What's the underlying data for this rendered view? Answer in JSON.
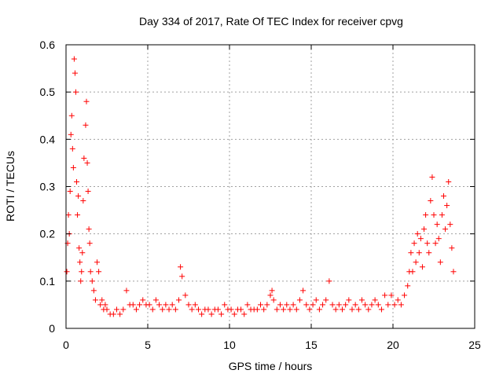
{
  "chart_data": {
    "type": "scatter",
    "title": "Day 334 of 2017, Rate Of TEC Index for receiver cpvg",
    "xlabel": "GPS time / hours",
    "ylabel": "ROTI / TECUs",
    "xlim": [
      0,
      25
    ],
    "ylim": [
      0,
      0.6
    ],
    "xticks": [
      "0",
      "5",
      "10",
      "15",
      "20",
      "25"
    ],
    "yticks": [
      "0",
      "0.1",
      "0.2",
      "0.3",
      "0.4",
      "0.5",
      "0.6"
    ],
    "grid": true,
    "marker": "+",
    "color": "#ff0000",
    "series": [
      {
        "x": [
          0.05,
          0.1,
          0.15,
          0.2,
          0.25,
          0.3,
          0.35,
          0.4,
          0.45,
          0.5,
          0.55,
          0.6,
          0.65,
          0.7,
          0.75,
          0.8,
          0.85,
          0.9,
          0.95,
          1.0,
          1.05,
          1.1,
          1.2,
          1.25,
          1.3,
          1.35,
          1.4,
          1.45,
          1.5,
          1.6,
          1.7,
          1.8,
          1.9,
          2.0,
          2.1,
          2.2,
          2.3,
          2.4,
          2.5,
          2.7,
          2.9,
          3.1,
          3.3,
          3.5,
          3.7,
          3.9,
          4.1,
          4.3,
          4.5,
          4.7,
          4.9,
          5.1,
          5.3,
          5.5,
          5.7,
          5.9,
          6.1,
          6.3,
          6.5,
          6.7,
          6.9,
          7.0,
          7.1,
          7.3,
          7.5,
          7.7,
          7.9,
          8.1,
          8.3,
          8.5,
          8.7,
          8.9,
          9.1,
          9.3,
          9.5,
          9.7,
          9.9,
          10.1,
          10.3,
          10.5,
          10.7,
          10.9,
          11.1,
          11.3,
          11.5,
          11.7,
          11.9,
          12.1,
          12.3,
          12.5,
          12.6,
          12.7,
          12.9,
          13.1,
          13.3,
          13.5,
          13.7,
          13.9,
          14.1,
          14.3,
          14.5,
          14.7,
          14.9,
          15.1,
          15.3,
          15.5,
          15.7,
          15.9,
          16.1,
          16.3,
          16.5,
          16.7,
          16.9,
          17.1,
          17.3,
          17.5,
          17.7,
          17.9,
          18.1,
          18.3,
          18.5,
          18.7,
          18.9,
          19.1,
          19.3,
          19.5,
          19.7,
          19.9,
          20.1,
          20.3,
          20.5,
          20.7,
          20.9,
          21.0,
          21.1,
          21.2,
          21.3,
          21.4,
          21.5,
          21.6,
          21.7,
          21.8,
          21.9,
          22.0,
          22.1,
          22.2,
          22.3,
          22.4,
          22.5,
          22.6,
          22.7,
          22.8,
          22.9,
          23.0,
          23.1,
          23.2,
          23.3,
          23.4,
          23.5,
          23.6,
          23.7
        ],
        "y": [
          0.12,
          0.18,
          0.24,
          0.2,
          0.29,
          0.41,
          0.45,
          0.38,
          0.34,
          0.57,
          0.54,
          0.5,
          0.31,
          0.24,
          0.28,
          0.17,
          0.14,
          0.1,
          0.12,
          0.16,
          0.27,
          0.36,
          0.43,
          0.48,
          0.35,
          0.29,
          0.21,
          0.18,
          0.12,
          0.1,
          0.08,
          0.06,
          0.14,
          0.12,
          0.05,
          0.06,
          0.04,
          0.05,
          0.04,
          0.03,
          0.03,
          0.04,
          0.03,
          0.04,
          0.08,
          0.05,
          0.05,
          0.04,
          0.05,
          0.06,
          0.05,
          0.05,
          0.04,
          0.06,
          0.05,
          0.04,
          0.05,
          0.04,
          0.05,
          0.04,
          0.06,
          0.13,
          0.11,
          0.07,
          0.05,
          0.04,
          0.05,
          0.04,
          0.03,
          0.04,
          0.04,
          0.03,
          0.04,
          0.04,
          0.03,
          0.05,
          0.04,
          0.04,
          0.03,
          0.04,
          0.04,
          0.03,
          0.05,
          0.04,
          0.04,
          0.04,
          0.05,
          0.04,
          0.05,
          0.07,
          0.08,
          0.06,
          0.04,
          0.05,
          0.04,
          0.05,
          0.04,
          0.05,
          0.04,
          0.06,
          0.08,
          0.05,
          0.04,
          0.05,
          0.06,
          0.04,
          0.05,
          0.06,
          0.1,
          0.05,
          0.04,
          0.05,
          0.04,
          0.05,
          0.06,
          0.04,
          0.05,
          0.04,
          0.06,
          0.05,
          0.04,
          0.05,
          0.06,
          0.05,
          0.04,
          0.07,
          0.05,
          0.07,
          0.05,
          0.06,
          0.05,
          0.07,
          0.09,
          0.12,
          0.16,
          0.12,
          0.18,
          0.14,
          0.2,
          0.16,
          0.19,
          0.13,
          0.21,
          0.24,
          0.18,
          0.16,
          0.27,
          0.32,
          0.24,
          0.18,
          0.22,
          0.19,
          0.14,
          0.24,
          0.28,
          0.21,
          0.26,
          0.31,
          0.22,
          0.17,
          0.12
        ]
      }
    ]
  }
}
